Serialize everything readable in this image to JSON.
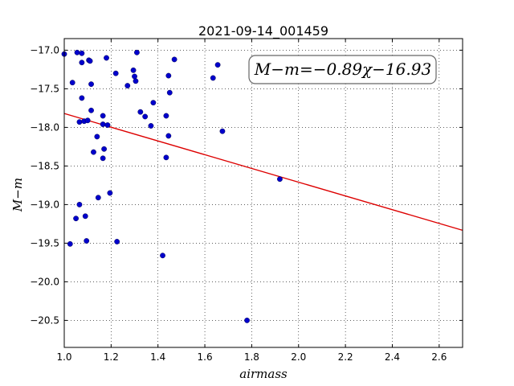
{
  "chart_data": {
    "type": "scatter",
    "title": "2021-09-14_001459",
    "xlabel": "airmass",
    "ylabel": "M−m",
    "xlim": [
      1.0,
      2.7
    ],
    "ylim": [
      -20.85,
      -16.85
    ],
    "xticks": [
      1.0,
      1.2,
      1.4,
      1.6,
      1.8,
      2.0,
      2.2,
      2.4,
      2.6
    ],
    "xtick_labels": [
      "1.0",
      "1.2",
      "1.4",
      "1.6",
      "1.8",
      "2.0",
      "2.2",
      "2.4",
      "2.6"
    ],
    "yticks": [
      -17.0,
      -17.5,
      -18.0,
      -18.5,
      -19.0,
      -19.5,
      -20.0,
      -20.5
    ],
    "ytick_labels": [
      "−17.0",
      "−17.5",
      "−18.0",
      "−18.5",
      "−19.0",
      "−19.5",
      "−20.0",
      "−20.5"
    ],
    "grid": true,
    "annotation": "M−m=−0.89χ−16.93",
    "colors": {
      "points": "#0000cc",
      "fit": "#dd0000"
    },
    "fit": {
      "slope": -0.89,
      "intercept": -16.93
    },
    "points": [
      [
        1.0,
        -17.05
      ],
      [
        1.055,
        -17.03
      ],
      [
        1.075,
        -17.04
      ],
      [
        1.105,
        -17.13
      ],
      [
        1.11,
        -17.14
      ],
      [
        1.075,
        -17.16
      ],
      [
        1.18,
        -17.1
      ],
      [
        1.31,
        -17.03
      ],
      [
        1.47,
        -17.12
      ],
      [
        1.655,
        -17.19
      ],
      [
        1.035,
        -17.42
      ],
      [
        1.115,
        -17.44
      ],
      [
        1.22,
        -17.3
      ],
      [
        1.295,
        -17.26
      ],
      [
        1.3,
        -17.34
      ],
      [
        1.305,
        -17.4
      ],
      [
        1.27,
        -17.46
      ],
      [
        1.445,
        -17.33
      ],
      [
        1.635,
        -17.36
      ],
      [
        1.45,
        -17.55
      ],
      [
        1.075,
        -17.62
      ],
      [
        1.115,
        -17.78
      ],
      [
        1.325,
        -17.8
      ],
      [
        1.345,
        -17.86
      ],
      [
        1.38,
        -17.68
      ],
      [
        1.165,
        -17.85
      ],
      [
        1.435,
        -17.85
      ],
      [
        1.065,
        -17.93
      ],
      [
        1.085,
        -17.92
      ],
      [
        1.1,
        -17.91
      ],
      [
        1.165,
        -17.96
      ],
      [
        1.185,
        -17.97
      ],
      [
        1.37,
        -17.98
      ],
      [
        1.675,
        -18.05
      ],
      [
        1.14,
        -18.12
      ],
      [
        1.445,
        -18.11
      ],
      [
        1.17,
        -18.28
      ],
      [
        1.125,
        -18.32
      ],
      [
        1.165,
        -18.4
      ],
      [
        1.435,
        -18.39
      ],
      [
        1.92,
        -18.67
      ],
      [
        1.195,
        -18.85
      ],
      [
        1.145,
        -18.91
      ],
      [
        1.065,
        -19.0
      ],
      [
        1.09,
        -19.15
      ],
      [
        1.05,
        -19.18
      ],
      [
        1.025,
        -19.51
      ],
      [
        1.095,
        -19.47
      ],
      [
        1.225,
        -19.48
      ],
      [
        1.42,
        -19.66
      ],
      [
        1.78,
        -20.5
      ]
    ]
  }
}
